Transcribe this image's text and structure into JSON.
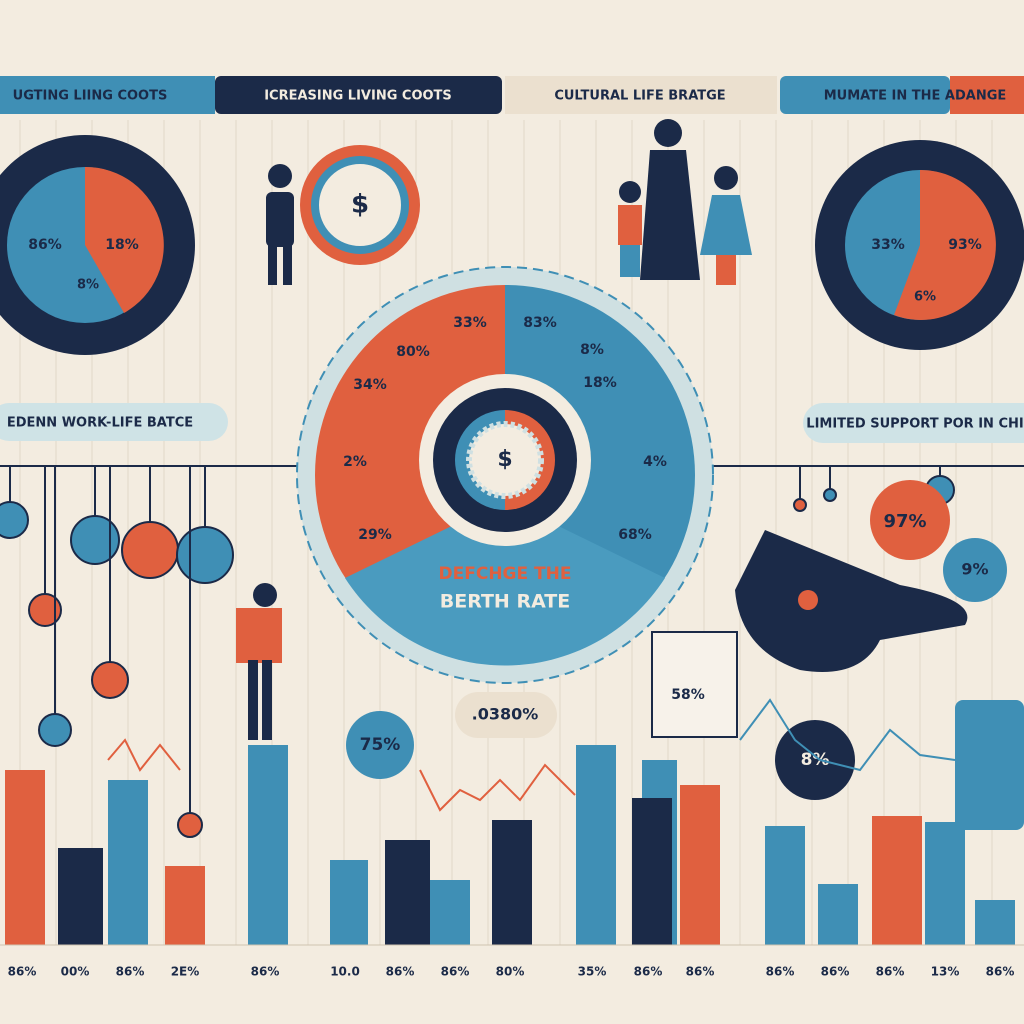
{
  "banners": [
    "UGTING LIING COOTS",
    "ICREASING LIVING COOTS",
    "CULTURAL LIFE BRATGE",
    "MUMATE IN THE ADANGE"
  ],
  "side_banners": [
    "EDENN WORK-LIFE BATCE",
    "LIMITED SUPPORT POR IN CHI"
  ],
  "left_pie": {
    "labels": [
      "86%",
      "18%",
      "8%"
    ]
  },
  "right_pie": {
    "labels": [
      "33%",
      "93%",
      "6%"
    ]
  },
  "center": {
    "symbol": "$",
    "title": "DEFCHGE THE",
    "subtitle": "BERTH RATE",
    "labels": [
      "33%",
      "83%",
      "80%",
      "8%",
      "34%",
      "18%",
      "2%",
      "4%",
      "29%",
      "68%"
    ]
  },
  "callouts": [
    "97%",
    "9%",
    "75%",
    ".0380%",
    "8%",
    "58%"
  ],
  "bar_labels": [
    "86%",
    "00%",
    "86%",
    "2E%",
    "86%",
    "10.0",
    "86%",
    "86%",
    "80%",
    "35%",
    "86%",
    "86%",
    "86%",
    "86%",
    "86%",
    "13%",
    "86%"
  ]
}
